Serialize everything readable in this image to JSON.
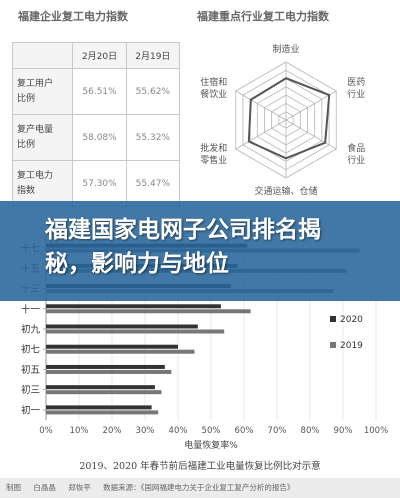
{
  "chart_data": [
    {
      "type": "table",
      "title": "福建企业复工电力指数",
      "columns": [
        "",
        "2月20日",
        "2月19日"
      ],
      "rows": [
        {
          "label_lines": [
            "复工用户",
            "比例"
          ],
          "values": [
            "56.51%",
            "55.62%"
          ]
        },
        {
          "label_lines": [
            "复产电量",
            "比例"
          ],
          "values": [
            "58.08%",
            "55.32%"
          ]
        },
        {
          "label_lines": [
            "复工电力",
            "指数"
          ],
          "values": [
            "57.30%",
            "55.47%"
          ]
        }
      ]
    },
    {
      "type": "radar",
      "title": "福建重点行业复工电力指数",
      "axes": [
        {
          "label_lines": [
            "制造业"
          ]
        },
        {
          "label_lines": [
            "医药",
            "行业"
          ]
        },
        {
          "label_lines": [
            "食品",
            "行业"
          ]
        },
        {
          "label_lines": [
            "交通运输、仓储"
          ]
        },
        {
          "label_lines": [
            "批发和",
            "零售业"
          ]
        },
        {
          "label_lines": [
            "住宿和",
            "餐饮业"
          ]
        }
      ],
      "rings": 7,
      "series": [
        {
          "values": [
            0.72,
            0.86,
            0.78,
            0.66,
            0.74,
            0.7
          ]
        }
      ]
    },
    {
      "type": "bar",
      "orientation": "horizontal",
      "xlabel": "电量恢复率%",
      "xlim": [
        0,
        100
      ],
      "xticks": [
        "0%",
        "10%",
        "20%",
        "30%",
        "40%",
        "50%",
        "60%",
        "70%",
        "80%",
        "90%",
        "100%"
      ],
      "categories": [
        "十七",
        "十五",
        "十三",
        "十一",
        "初九",
        "初七",
        "初五",
        "初三",
        "初一"
      ],
      "series": [
        {
          "name": "2020",
          "color": "#333333",
          "values": [
            61,
            58,
            56,
            53,
            46,
            40,
            36,
            33,
            32
          ]
        },
        {
          "name": "2019",
          "color": "#777777",
          "values": [
            95,
            91,
            87,
            62,
            54,
            45,
            38,
            35,
            34
          ]
        }
      ]
    }
  ],
  "banner": {
    "title": "福建国家电网子公司排名揭秘，影响力与地位"
  },
  "caption": "2019、2020 年春节前后福建工业电量恢复比例比对示意",
  "credit": [
    "制图",
    "白晶晶",
    "郑恢平",
    "数据来源：《国网福建电力关于企业复工复产分析的报告》"
  ],
  "colors": {
    "banner": "#27659b",
    "bar_2020": "#333333",
    "bar_2019": "#777777"
  }
}
